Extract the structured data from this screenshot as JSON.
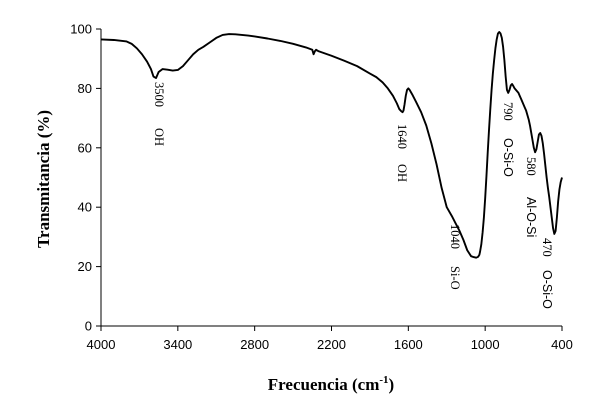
{
  "chart_data": {
    "type": "line",
    "title": "",
    "xlabel_main": "Frecuencia (cm",
    "xlabel_sup": "-1",
    "xlabel_close": ")",
    "ylabel": "Transmitancia (%)",
    "xlim": [
      4000,
      400
    ],
    "ylim": [
      0,
      100
    ],
    "x_reversed": true,
    "x_ticks": [
      "4000",
      "3400",
      "2800",
      "2200",
      "1600",
      "1000",
      "400"
    ],
    "y_ticks": [
      "0",
      "20",
      "40",
      "60",
      "80",
      "100"
    ],
    "grid": false,
    "legend": "none",
    "line_color": "#000000",
    "series": [
      {
        "x": [
          4000,
          3900,
          3800,
          3760,
          3720,
          3680,
          3640,
          3610,
          3590,
          3570,
          3550,
          3520,
          3480,
          3440,
          3400,
          3360,
          3320,
          3280,
          3240,
          3200,
          3150,
          3100,
          3050,
          3000,
          2950,
          2900,
          2850,
          2800,
          2700,
          2600,
          2500,
          2400,
          2350,
          2340,
          2330,
          2320,
          2300,
          2200,
          2100,
          2000,
          1900,
          1850,
          1800,
          1760,
          1720,
          1690,
          1670,
          1655,
          1645,
          1638,
          1630,
          1620,
          1610,
          1600,
          1590,
          1570,
          1540,
          1500,
          1460,
          1420,
          1380,
          1340,
          1300,
          1260,
          1230,
          1200,
          1170,
          1140,
          1110,
          1090,
          1070,
          1055,
          1045,
          1040,
          1030,
          1020,
          1010,
          1000,
          990,
          980,
          970,
          960,
          950,
          940,
          930,
          920,
          910,
          900,
          890,
          880,
          870,
          860,
          850,
          840,
          830,
          820,
          810,
          800,
          790,
          780,
          770,
          760,
          750,
          740,
          730,
          720,
          710,
          700,
          690,
          680,
          670,
          660,
          650,
          640,
          630,
          620,
          610,
          600,
          590,
          580,
          570,
          560,
          550,
          540,
          530,
          520,
          510,
          500,
          490,
          480,
          470,
          460,
          450,
          440,
          430,
          420,
          410,
          400
        ],
        "y": [
          96.5,
          96.3,
          95.8,
          95.0,
          93.5,
          91.5,
          89.0,
          86.5,
          84.0,
          83.5,
          85.5,
          86.5,
          86.3,
          86.0,
          86.2,
          87.5,
          89.5,
          91.5,
          93.0,
          94.0,
          95.5,
          97.0,
          98.0,
          98.3,
          98.2,
          98.0,
          97.8,
          97.5,
          96.8,
          96.0,
          95.0,
          93.8,
          93.0,
          91.5,
          92.5,
          93.0,
          92.5,
          91.0,
          89.3,
          87.5,
          85.0,
          83.8,
          82.0,
          80.0,
          77.5,
          75.0,
          73.0,
          72.3,
          72.0,
          72.5,
          74.5,
          77.5,
          79.5,
          80.0,
          79.5,
          78.0,
          75.5,
          72.0,
          67.5,
          61.5,
          54.5,
          46.5,
          40.0,
          37.0,
          34.5,
          32.0,
          29.0,
          25.5,
          23.5,
          23.2,
          23.0,
          23.3,
          24.0,
          25.0,
          27.5,
          31.5,
          36.5,
          43.0,
          50.5,
          58.5,
          66.0,
          73.0,
          79.5,
          85.0,
          89.5,
          93.5,
          96.5,
          98.5,
          99.0,
          98.5,
          97.0,
          94.0,
          89.5,
          84.0,
          79.5,
          78.5,
          79.5,
          81.0,
          81.5,
          80.8,
          80.0,
          79.5,
          79.0,
          78.5,
          77.5,
          76.5,
          75.5,
          74.5,
          73.5,
          72.5,
          71.0,
          69.5,
          67.5,
          65.0,
          62.5,
          60.0,
          58.5,
          59.5,
          62.0,
          64.5,
          65.0,
          64.0,
          61.5,
          58.0,
          54.0,
          50.0,
          46.5,
          43.5,
          40.0,
          36.5,
          33.0,
          31.0,
          32.0,
          36.5,
          42.0,
          46.0,
          48.5,
          50.0
        ]
      }
    ],
    "annotations": [
      {
        "text": "3500",
        "family": "serif"
      },
      {
        "text": "OH",
        "family": "serif"
      },
      {
        "text": "1640",
        "family": "serif"
      },
      {
        "text": "OH",
        "family": "serif"
      },
      {
        "text": "1040",
        "family": "serif"
      },
      {
        "text": "Si-O",
        "family": "serif"
      },
      {
        "text": "790",
        "family": "serif"
      },
      {
        "text": "O-Si-O",
        "family": "sans"
      },
      {
        "text": "580",
        "family": "serif"
      },
      {
        "text": "Al-O-Si",
        "family": "sans"
      },
      {
        "text": "470",
        "family": "serif"
      },
      {
        "text": "O-Si-O",
        "family": "sans"
      }
    ]
  }
}
